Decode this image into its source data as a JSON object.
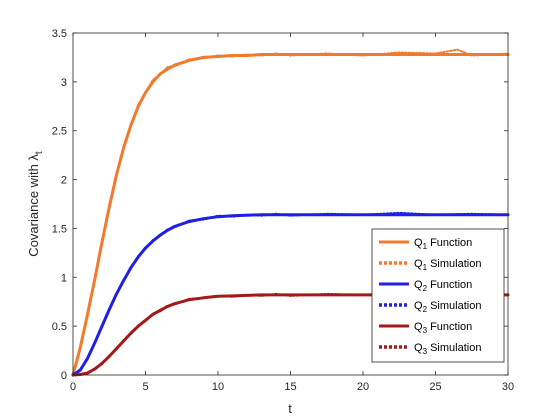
{
  "chart_data": {
    "type": "line",
    "xlabel": "t",
    "ylabel_main": "Covariance with ",
    "ylabel_symbol": "λ",
    "ylabel_subscript": "t",
    "xlim": [
      0,
      30
    ],
    "ylim": [
      0,
      3.5
    ],
    "xticks": [
      0,
      5,
      10,
      15,
      20,
      25,
      30
    ],
    "yticks": [
      0,
      0.5,
      1,
      1.5,
      2,
      2.5,
      3,
      3.5
    ],
    "grid": false,
    "legend_position": "lower-right",
    "series": [
      {
        "name": "Q1 Function",
        "legend_main": "Q",
        "legend_sub": "1",
        "legend_rest": " Function",
        "style": "solid",
        "color": "#F27A2C",
        "x": [
          0,
          0.5,
          1,
          1.5,
          2,
          2.5,
          3,
          3.5,
          4,
          4.5,
          5,
          5.5,
          6,
          6.5,
          7,
          8,
          9,
          10,
          11,
          12,
          13,
          14,
          15,
          17.5,
          20,
          22.5,
          25,
          27.5,
          30
        ],
        "y": [
          0,
          0.28,
          0.62,
          0.98,
          1.36,
          1.72,
          2.05,
          2.33,
          2.56,
          2.75,
          2.89,
          3.0,
          3.08,
          3.13,
          3.17,
          3.22,
          3.25,
          3.26,
          3.27,
          3.27,
          3.28,
          3.28,
          3.28,
          3.28,
          3.28,
          3.28,
          3.28,
          3.28,
          3.28
        ]
      },
      {
        "name": "Q1 Simulation",
        "legend_main": "Q",
        "legend_sub": "1",
        "legend_rest": " Simulation",
        "style": "dotted",
        "color": "#F27A2C",
        "x": [
          0,
          0.5,
          1,
          1.5,
          2,
          2.5,
          3,
          3.5,
          4,
          4.5,
          5,
          5.5,
          6,
          6.5,
          7,
          8,
          9,
          10,
          11,
          12,
          13,
          14,
          15,
          17.5,
          20,
          22.5,
          25,
          26.5,
          27.5,
          30
        ],
        "y": [
          0,
          0.3,
          0.6,
          1.0,
          1.34,
          1.74,
          2.03,
          2.35,
          2.55,
          2.77,
          2.88,
          3.02,
          3.07,
          3.15,
          3.16,
          3.23,
          3.24,
          3.27,
          3.26,
          3.28,
          3.27,
          3.29,
          3.27,
          3.29,
          3.27,
          3.3,
          3.29,
          3.33,
          3.27,
          3.29
        ]
      },
      {
        "name": "Q2 Function",
        "legend_main": "Q",
        "legend_sub": "2",
        "legend_rest": " Function",
        "style": "solid",
        "color": "#1F1FE6",
        "x": [
          0,
          0.5,
          1,
          1.5,
          2,
          2.5,
          3,
          3.5,
          4,
          4.5,
          5,
          5.5,
          6,
          6.5,
          7,
          8,
          9,
          10,
          11,
          12,
          13,
          14,
          15,
          17.5,
          20,
          22.5,
          25,
          27.5,
          30
        ],
        "y": [
          0,
          0.05,
          0.17,
          0.33,
          0.5,
          0.67,
          0.83,
          0.97,
          1.1,
          1.21,
          1.3,
          1.37,
          1.43,
          1.48,
          1.52,
          1.57,
          1.6,
          1.62,
          1.63,
          1.635,
          1.64,
          1.64,
          1.64,
          1.64,
          1.64,
          1.64,
          1.64,
          1.64,
          1.64
        ]
      },
      {
        "name": "Q2 Simulation",
        "legend_main": "Q",
        "legend_sub": "2",
        "legend_rest": " Simulation",
        "style": "dotted",
        "color": "#1F1FE6",
        "x": [
          0,
          0.5,
          1,
          1.5,
          2,
          2.5,
          3,
          3.5,
          4,
          4.5,
          5,
          5.5,
          6,
          6.5,
          7,
          8,
          9,
          10,
          11,
          12,
          13,
          14,
          15,
          17.5,
          20,
          22.5,
          25,
          27.5,
          30
        ],
        "y": [
          0,
          0.06,
          0.16,
          0.34,
          0.49,
          0.68,
          0.82,
          0.98,
          1.09,
          1.22,
          1.29,
          1.38,
          1.42,
          1.49,
          1.51,
          1.58,
          1.59,
          1.63,
          1.62,
          1.64,
          1.63,
          1.65,
          1.63,
          1.65,
          1.64,
          1.66,
          1.64,
          1.65,
          1.64
        ]
      },
      {
        "name": "Q3 Function",
        "legend_main": "Q",
        "legend_sub": "3",
        "legend_rest": " Function",
        "style": "solid",
        "color": "#A31A1A",
        "x": [
          0,
          0.5,
          1,
          1.5,
          2,
          2.5,
          3,
          3.5,
          4,
          4.5,
          5,
          5.5,
          6,
          6.5,
          7,
          8,
          9,
          10,
          11,
          12,
          13,
          14,
          15,
          17.5,
          20,
          22.5,
          25,
          27.5,
          30
        ],
        "y": [
          0,
          0.005,
          0.02,
          0.06,
          0.12,
          0.19,
          0.27,
          0.35,
          0.43,
          0.5,
          0.56,
          0.62,
          0.66,
          0.7,
          0.73,
          0.77,
          0.79,
          0.805,
          0.81,
          0.815,
          0.82,
          0.82,
          0.82,
          0.82,
          0.82,
          0.82,
          0.82,
          0.82,
          0.82
        ]
      },
      {
        "name": "Q3 Simulation",
        "legend_main": "Q",
        "legend_sub": "3",
        "legend_rest": " Simulation",
        "style": "dotted",
        "color": "#A31A1A",
        "x": [
          0,
          0.5,
          1,
          1.5,
          2,
          2.5,
          3,
          3.5,
          4,
          4.5,
          5,
          5.5,
          6,
          6.5,
          7,
          8,
          9,
          10,
          11,
          12,
          13,
          14,
          15,
          17.5,
          20,
          22.5,
          25,
          27.5,
          30
        ],
        "y": [
          0,
          0.01,
          0.02,
          0.07,
          0.11,
          0.2,
          0.26,
          0.36,
          0.42,
          0.51,
          0.55,
          0.63,
          0.65,
          0.71,
          0.72,
          0.78,
          0.79,
          0.81,
          0.8,
          0.82,
          0.81,
          0.83,
          0.81,
          0.83,
          0.82,
          0.84,
          0.82,
          0.83,
          0.82
        ]
      }
    ]
  }
}
